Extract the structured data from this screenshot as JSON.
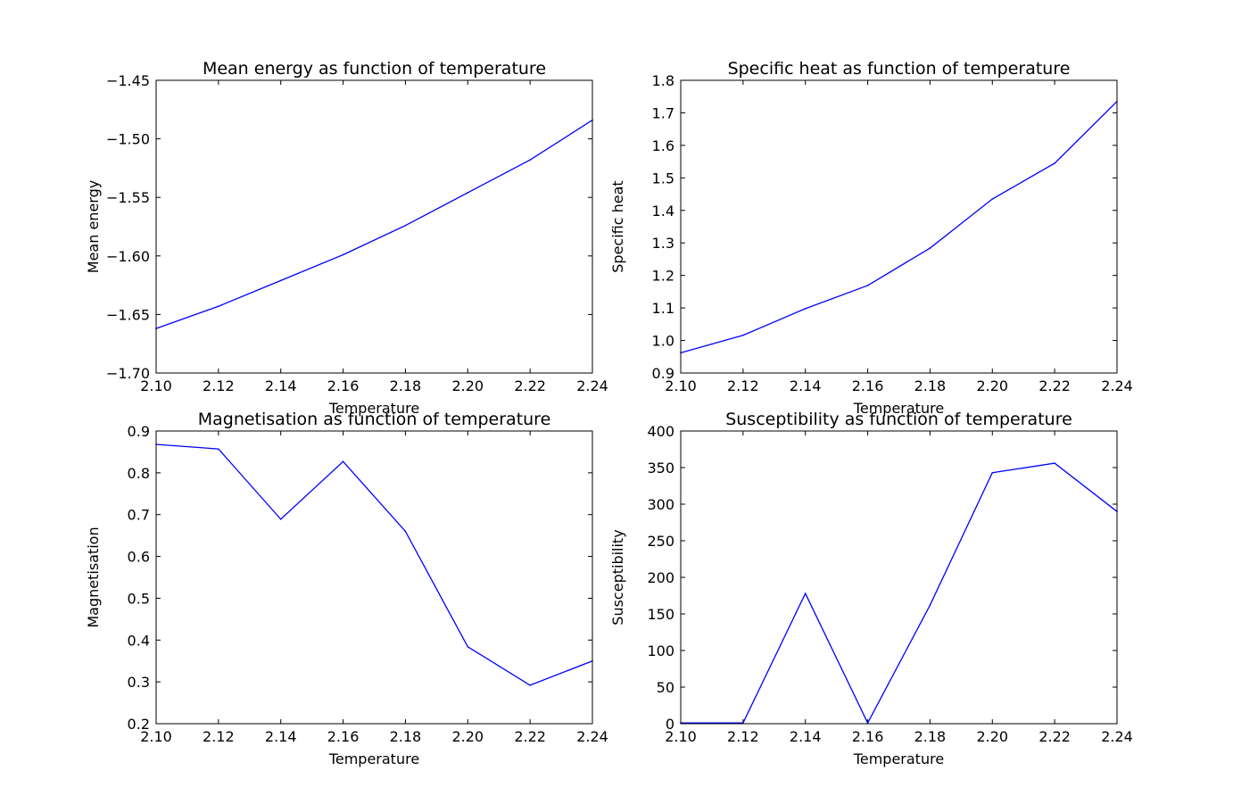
{
  "chart_data": [
    {
      "type": "line",
      "title": "Mean energy as function of temperature",
      "xlabel": "Temperature",
      "ylabel": "Mean energy",
      "xlim": [
        2.1,
        2.24
      ],
      "ylim": [
        -1.7,
        -1.45
      ],
      "x_ticks": [
        "2.10",
        "2.12",
        "2.14",
        "2.16",
        "2.18",
        "2.20",
        "2.22",
        "2.24"
      ],
      "y_ticks": [
        "−1.70",
        "−1.65",
        "−1.60",
        "−1.55",
        "−1.50",
        "−1.45"
      ],
      "grid": false,
      "series": [
        {
          "x": [
            2.1,
            2.12,
            2.14,
            2.16,
            2.18,
            2.2,
            2.22,
            2.24
          ],
          "y": [
            -1.662,
            -1.643,
            -1.621,
            -1.599,
            -1.574,
            -1.546,
            -1.518,
            -1.484
          ],
          "color": "#0000ff"
        }
      ]
    },
    {
      "type": "line",
      "title": "Specific heat as function of temperature",
      "xlabel": "Temperature",
      "ylabel": "Specific heat",
      "xlim": [
        2.1,
        2.24
      ],
      "ylim": [
        0.9,
        1.8
      ],
      "x_ticks": [
        "2.10",
        "2.12",
        "2.14",
        "2.16",
        "2.18",
        "2.20",
        "2.22",
        "2.24"
      ],
      "y_ticks": [
        "0.9",
        "1.0",
        "1.1",
        "1.2",
        "1.3",
        "1.4",
        "1.5",
        "1.6",
        "1.7",
        "1.8"
      ],
      "grid": false,
      "series": [
        {
          "x": [
            2.1,
            2.12,
            2.14,
            2.16,
            2.18,
            2.2,
            2.22,
            2.24
          ],
          "y": [
            0.962,
            1.016,
            1.098,
            1.169,
            1.284,
            1.435,
            1.545,
            1.735
          ],
          "color": "#0000ff"
        }
      ]
    },
    {
      "type": "line",
      "title": "Magnetisation as function of temperature",
      "xlabel": "Temperature",
      "ylabel": "Magnetisation",
      "xlim": [
        2.1,
        2.24
      ],
      "ylim": [
        0.2,
        0.9
      ],
      "x_ticks": [
        "2.10",
        "2.12",
        "2.14",
        "2.16",
        "2.18",
        "2.20",
        "2.22",
        "2.24"
      ],
      "y_ticks": [
        "0.2",
        "0.3",
        "0.4",
        "0.5",
        "0.6",
        "0.7",
        "0.8",
        "0.9"
      ],
      "grid": false,
      "series": [
        {
          "x": [
            2.1,
            2.12,
            2.14,
            2.16,
            2.18,
            2.2,
            2.22,
            2.24
          ],
          "y": [
            0.868,
            0.857,
            0.689,
            0.827,
            0.66,
            0.384,
            0.292,
            0.35
          ],
          "color": "#0000ff"
        }
      ]
    },
    {
      "type": "line",
      "title": "Susceptibility as function of temperature",
      "xlabel": "Temperature",
      "ylabel": "Susceptibility",
      "xlim": [
        2.1,
        2.24
      ],
      "ylim": [
        0,
        400
      ],
      "x_ticks": [
        "2.10",
        "2.12",
        "2.14",
        "2.16",
        "2.18",
        "2.20",
        "2.22",
        "2.24"
      ],
      "y_ticks": [
        "0",
        "50",
        "100",
        "150",
        "200",
        "250",
        "300",
        "350",
        "400"
      ],
      "grid": false,
      "series": [
        {
          "x": [
            2.1,
            2.12,
            2.14,
            2.16,
            2.18,
            2.2,
            2.22,
            2.24
          ],
          "y": [
            1,
            1,
            178,
            1,
            162,
            343,
            356,
            290
          ],
          "color": "#0000ff"
        }
      ]
    }
  ]
}
